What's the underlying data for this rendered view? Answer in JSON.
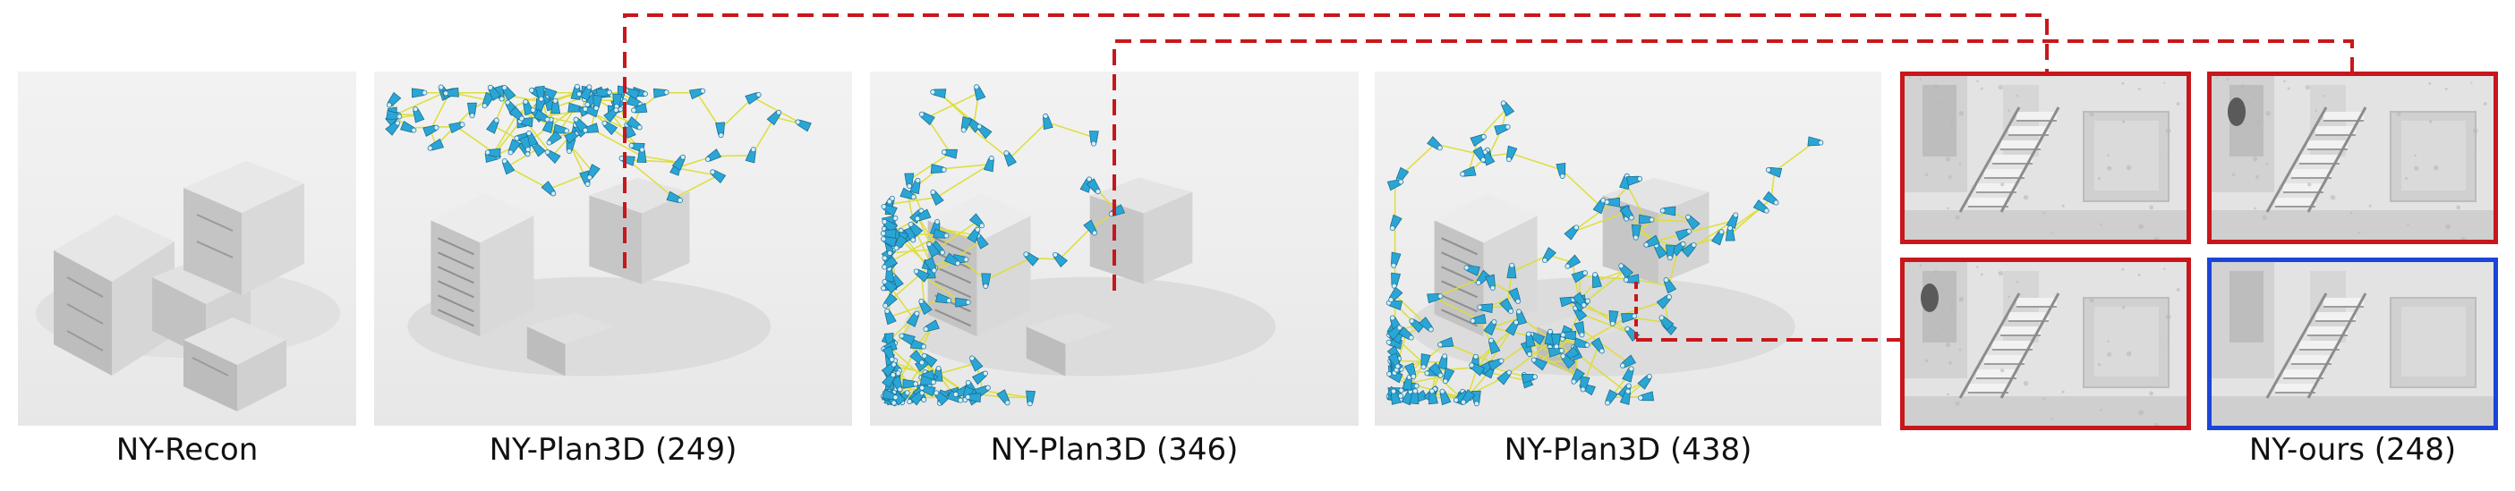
{
  "panels": [
    {
      "caption": "NY-Recon"
    },
    {
      "caption": "NY-Plan3D (249)"
    },
    {
      "caption": "NY-Plan3D (346)"
    },
    {
      "caption": "NY-Plan3D (438)"
    }
  ],
  "detail_caption": "NY-ours (248)",
  "colors": {
    "highlight_red": "#c8171c",
    "highlight_blue": "#1a45d8",
    "camera_cyan": "#2aa6d6",
    "trajectory_yellow": "#dede3a",
    "building_gray": "#cfcfcf"
  }
}
